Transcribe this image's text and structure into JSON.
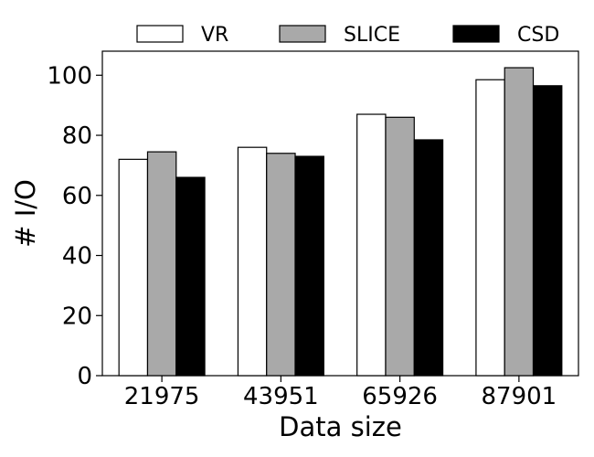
{
  "chart_data": {
    "type": "bar",
    "title": "",
    "xlabel": "Data size",
    "ylabel": "# I/O",
    "categories": [
      "21975",
      "43951",
      "65926",
      "87901"
    ],
    "ylim": [
      0,
      108
    ],
    "yticks": [
      0,
      20,
      40,
      60,
      80,
      100
    ],
    "ytick_labels": [
      "0",
      "20",
      "40",
      "60",
      "80",
      "100"
    ],
    "grid": false,
    "legend_position": "top-outside",
    "series": [
      {
        "name": "VR",
        "color": "#ffffff",
        "values": [
          72,
          76,
          87,
          98.5
        ]
      },
      {
        "name": "SLICE",
        "color": "#a9a9a9",
        "values": [
          74.5,
          74,
          86,
          102.5
        ]
      },
      {
        "name": "CSD",
        "color": "#000000",
        "values": [
          66,
          73,
          78.5,
          96.5
        ]
      }
    ]
  }
}
